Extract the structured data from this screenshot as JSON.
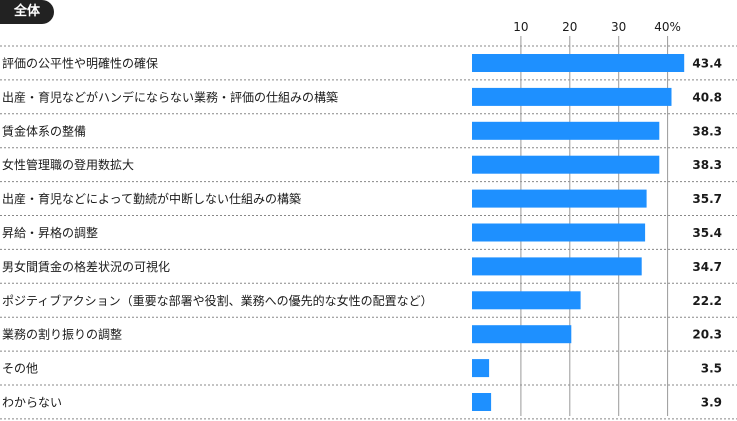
{
  "panel": {
    "label": "全体"
  },
  "chart_data": {
    "type": "bar",
    "orientation": "horizontal",
    "categories": [
      "評価の公平性や明確性の確保",
      "出産・育児などがハンデにならない業務・評価の仕組みの構築",
      "賃金体系の整備",
      "女性管理職の登用数拡大",
      "出産・育児などによって勤続が中断しない仕組みの構築",
      "昇給・昇格の調整",
      "男女間賃金の格差状況の可視化",
      "ポジティブアクション（重要な部署や役割、業務への優先的な女性の配置など）",
      "業務の割り振りの調整",
      "その他",
      "わからない"
    ],
    "values": [
      43.4,
      40.8,
      38.3,
      38.3,
      35.7,
      35.4,
      34.7,
      22.2,
      20.3,
      3.5,
      3.9
    ],
    "value_labels": [
      "43.4",
      "40.8",
      "38.3",
      "38.3",
      "35.7",
      "35.4",
      "34.7",
      "22.2",
      "20.3",
      "3.5",
      "3.9"
    ],
    "xticks": [
      10,
      20,
      30,
      40
    ],
    "xtick_labels": [
      "10",
      "20",
      "30",
      "40%"
    ],
    "xlim": [
      0,
      45
    ],
    "grid": true,
    "bar_color": "#1e90ff",
    "grid_color": "#999999",
    "separator_color": "#888888"
  }
}
